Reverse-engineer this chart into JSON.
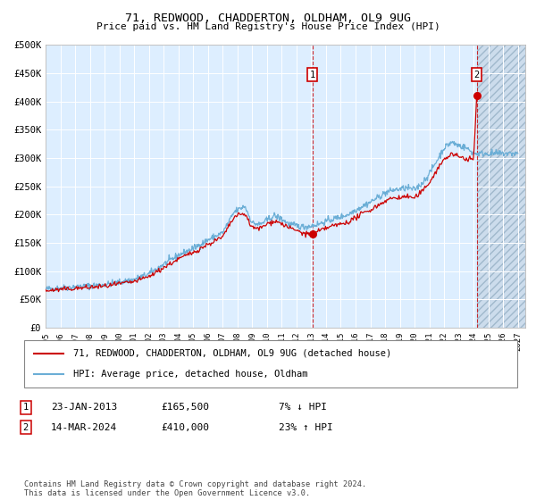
{
  "title": "71, REDWOOD, CHADDERTON, OLDHAM, OL9 9UG",
  "subtitle": "Price paid vs. HM Land Registry's House Price Index (HPI)",
  "ylim": [
    0,
    500000
  ],
  "yticks": [
    0,
    50000,
    100000,
    150000,
    200000,
    250000,
    300000,
    350000,
    400000,
    450000,
    500000
  ],
  "ytick_labels": [
    "£0",
    "£50K",
    "£100K",
    "£150K",
    "£200K",
    "£250K",
    "£300K",
    "£350K",
    "£400K",
    "£450K",
    "£500K"
  ],
  "xlim_start": 1995.0,
  "xlim_end": 2027.5,
  "hpi_line_color": "#6baed6",
  "price_line_color": "#cc0000",
  "bg_color": "#ddeeff",
  "grid_color": "#ffffff",
  "sale1_date_num": 2013.07,
  "sale1_price": 165500,
  "sale2_date_num": 2024.21,
  "sale2_price": 410000,
  "legend_label1": "71, REDWOOD, CHADDERTON, OLDHAM, OL9 9UG (detached house)",
  "legend_label2": "HPI: Average price, detached house, Oldham",
  "annotation1_date": "23-JAN-2013",
  "annotation1_price": "£165,500",
  "annotation1_hpi": "7% ↓ HPI",
  "annotation2_date": "14-MAR-2024",
  "annotation2_price": "£410,000",
  "annotation2_hpi": "23% ↑ HPI",
  "footer": "Contains HM Land Registry data © Crown copyright and database right 2024.\nThis data is licensed under the Open Government Licence v3.0."
}
